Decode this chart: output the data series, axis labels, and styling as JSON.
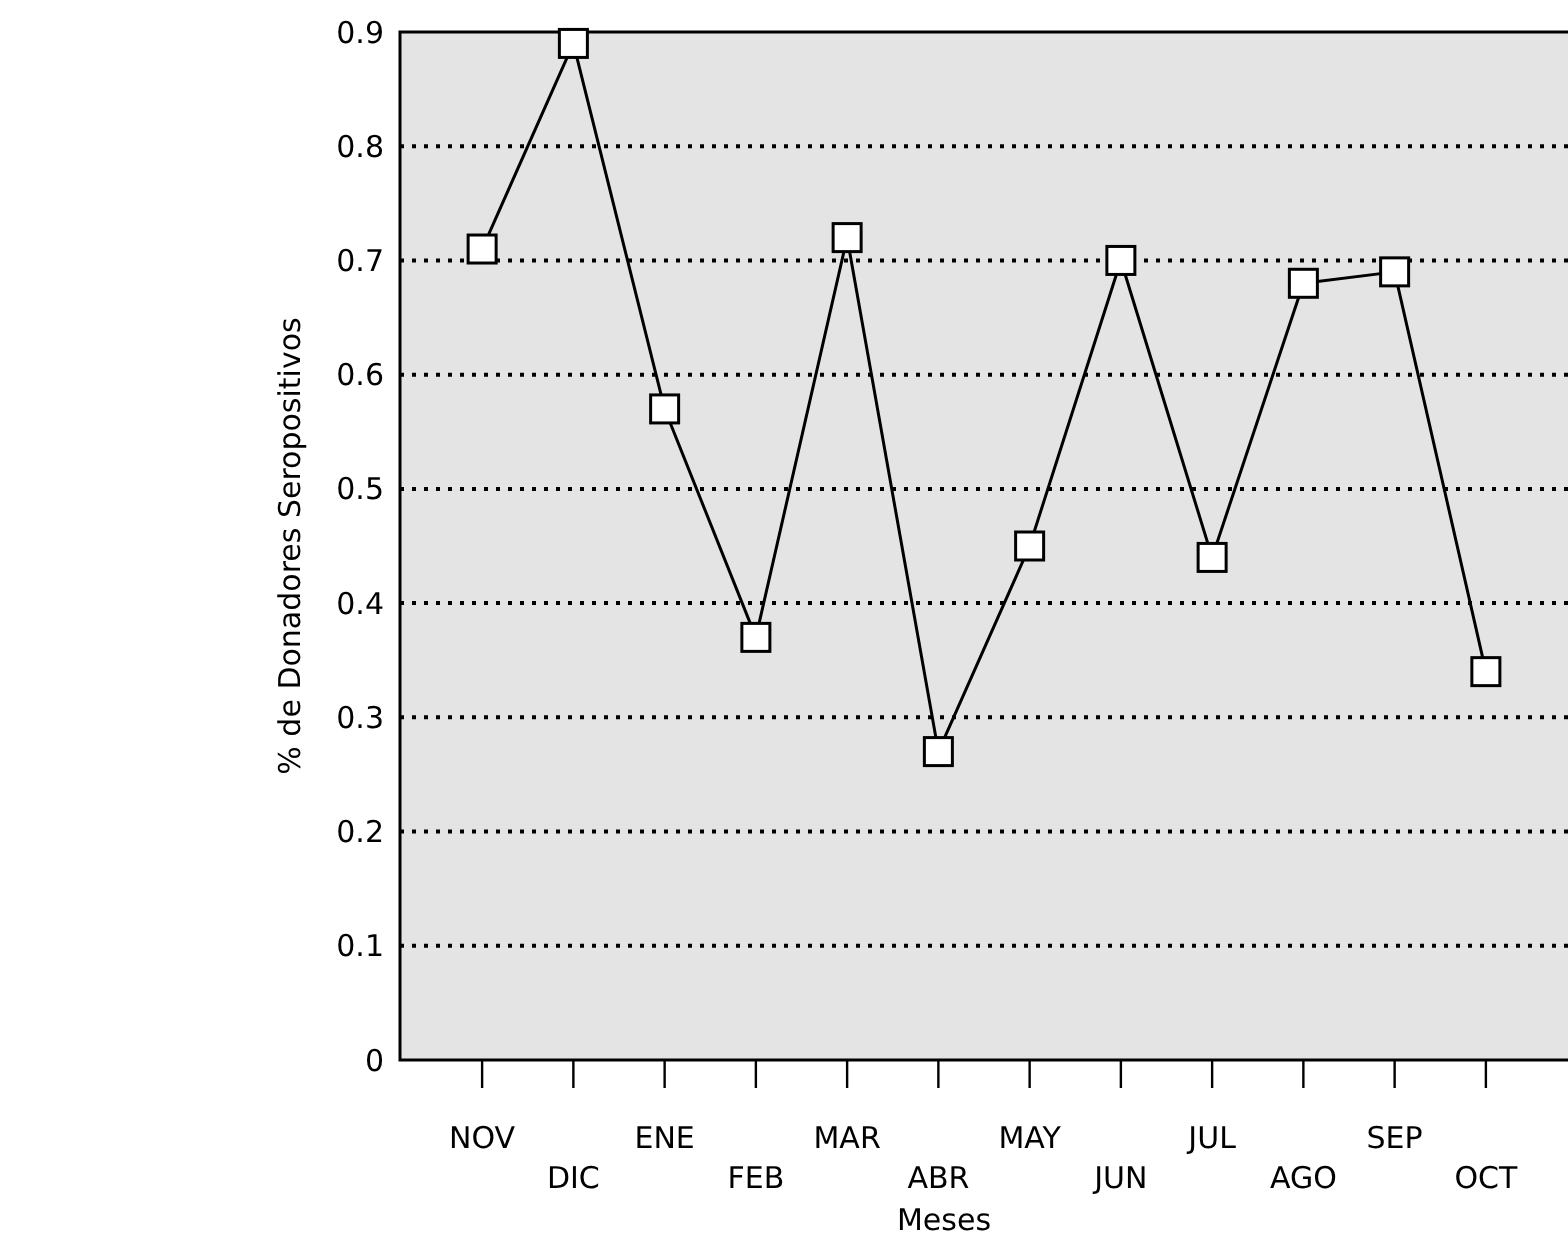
{
  "chart_data": {
    "type": "line",
    "xlabel": "Meses",
    "ylabel": "% de Donadores Seropositivos",
    "categories": [
      "NOV",
      "DIC",
      "ENE",
      "FEB",
      "MAR",
      "ABR",
      "MAY",
      "JUN",
      "JUL",
      "AGO",
      "SEP",
      "OCT"
    ],
    "series": [
      {
        "color": "#000000",
        "values": [
          0.71,
          0.89,
          0.57,
          0.37,
          0.72,
          0.27,
          0.45,
          0.7,
          0.44,
          0.68,
          0.69,
          0.34
        ]
      }
    ],
    "ylim": [
      0,
      0.9
    ],
    "yticks": [
      {
        "value": 0,
        "label": "0"
      },
      {
        "value": 0.1,
        "label": "0.1"
      },
      {
        "value": 0.2,
        "label": "0.2"
      },
      {
        "value": 0.3,
        "label": "0.3"
      },
      {
        "value": 0.4,
        "label": "0.4"
      },
      {
        "value": 0.5,
        "label": "0.5"
      },
      {
        "value": 0.6,
        "label": "0.6"
      },
      {
        "value": 0.7,
        "label": "0.7"
      },
      {
        "value": 0.8,
        "label": "0.8"
      },
      {
        "value": 0.9,
        "label": "0.9"
      }
    ],
    "grid": "y",
    "marker": "square",
    "line_style": "solid"
  }
}
